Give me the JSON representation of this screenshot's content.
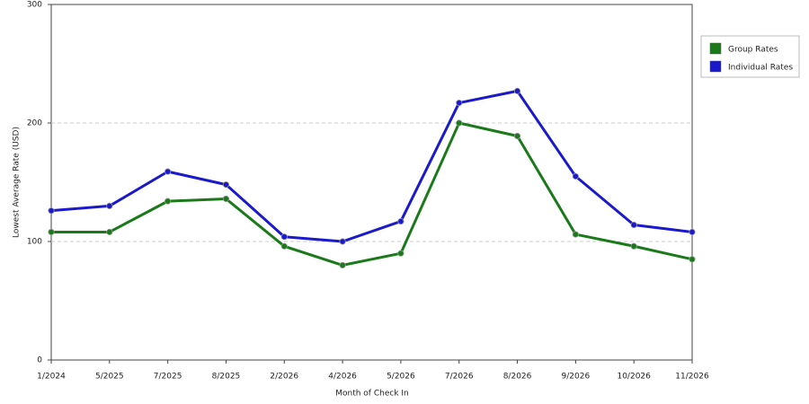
{
  "chart_data": {
    "type": "line",
    "x_label": "Month of Check In",
    "y_label": "Lowest Average Rate (USD)",
    "categories": [
      "1/2024",
      "5/2025",
      "7/2025",
      "8/2025",
      "2/2026",
      "4/2026",
      "5/2026",
      "7/2026",
      "8/2026",
      "9/2026",
      "10/2026",
      "11/2026"
    ],
    "series": [
      {
        "name": "Group Rates",
        "color": "#1a7a1a",
        "values": [
          108,
          108,
          134,
          136,
          96,
          80,
          90,
          200,
          189,
          106,
          96,
          85
        ]
      },
      {
        "name": "Individual Rates",
        "color": "#1a1acc",
        "values": [
          126,
          130,
          159,
          148,
          104,
          100,
          117,
          217,
          227,
          155,
          114,
          108
        ]
      }
    ],
    "ylim": [
      0,
      300
    ],
    "yticks": [
      0,
      100,
      200,
      300
    ],
    "grid": true,
    "legend": "right"
  }
}
